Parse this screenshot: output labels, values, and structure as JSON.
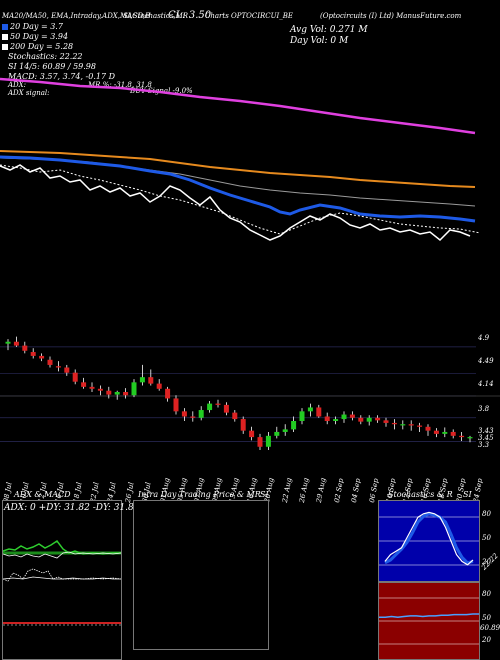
{
  "header": {
    "topline": "MA20/MA50, EMA,Intraday,ADX,MACD,B",
    "stoch_label": "SI,Stochastics,MR",
    "cl": "CL: 3.50",
    "symbol": "Charts OPTOCIRCUI_BE",
    "source": "(Optocircuits (I) Ltd) ManusFuture.com",
    "avg_vol": "Avg Vol: 0.271 M",
    "day_vol": "Day Vol: 0   M"
  },
  "legend": {
    "ma20": "20 Day = 3.7",
    "ma50": "50 Day = 3.94",
    "ma200": "200 Day = 5.28",
    "stochastics": "Stochastics: 22.22",
    "si": "SI 14/5: 60.89 / 59.98",
    "macd": "MACD: 3.57, 3.74, -0.17 D",
    "adx_label": "ADX:",
    "adx_signal": "ADX signal:",
    "mr_pct": "MR %: -31.8, 31.8",
    "buy_signal": "BUY Signal -9.0%",
    "colors": {
      "ma20": "#1e5ae6",
      "ma50": "#ffffff",
      "ma200": "#ffffff"
    }
  },
  "price_axis": [
    "4.9",
    "4.49",
    "4.14",
    "3.8",
    "3.43",
    "3.45",
    "3.3"
  ],
  "date_labels": [
    "08 Jul",
    "10 Jul",
    "12 Jul",
    "16 Jul",
    "18 Jul",
    "22 Jul",
    "24 Jul",
    "26 Jul",
    "30 Jul",
    "01 Aug",
    "05 Aug",
    "07 Aug",
    "09 Aug",
    "13 Aug",
    "16 Aug",
    "20 Aug",
    "22 Aug",
    "26 Aug",
    "29 Aug",
    "02 Sep",
    "04 Sep",
    "06 Sep",
    "10 Sep",
    "12 Sep",
    "16 Sep",
    "18 Sep",
    "20 Sep",
    "24 Sep"
  ],
  "panels": {
    "adx_title": "ADX  & MACD",
    "adx_values": "ADX: 0  +DY: 31.82  -DY: 31.82",
    "intraday_title": "Intra  Day Trading Price  & MR",
    "si_title": "SI",
    "stoch_title": "Stochastics & R",
    "stoch_si_title": "SI",
    "stoch_axis": [
      "80",
      "50",
      "20",
      "22.22"
    ],
    "si_axis": [
      "80",
      "50",
      "20",
      "60.89"
    ]
  },
  "chart_data": [
    {
      "type": "line",
      "title": "Moving averages",
      "series": [
        {
          "name": "MA20",
          "color": "#1e5ae6",
          "values": [
            4.05,
            4.04,
            4.02,
            4.0,
            3.97,
            3.95,
            3.92,
            3.9,
            3.88,
            3.86,
            3.84,
            3.82,
            3.8,
            3.78,
            3.76,
            3.74,
            3.72,
            3.7
          ]
        },
        {
          "name": "MA50",
          "color": "#ffffff",
          "values": [
            4.45,
            4.44,
            4.42,
            4.4,
            4.37,
            4.34,
            4.31,
            4.28,
            4.25,
            4.21,
            4.17,
            4.13,
            4.09,
            4.05,
            4.01,
            3.98,
            3.96,
            3.94
          ]
        },
        {
          "name": "MA200",
          "color": "#ffffff",
          "values": [
            6.4,
            6.35,
            6.3,
            6.25,
            6.2,
            6.15,
            6.1,
            6.05,
            6.0,
            5.95,
            5.9,
            5.84,
            5.78,
            5.72,
            5.64,
            5.54,
            5.42,
            5.28
          ]
        }
      ]
    },
    {
      "type": "candlestick",
      "x": [
        "08 Jul",
        "09 Jul",
        "10 Jul",
        "11 Jul",
        "12 Jul",
        "15 Jul",
        "16 Jul",
        "17 Jul",
        "18 Jul",
        "19 Jul",
        "22 Jul",
        "23 Jul",
        "24 Jul",
        "25 Jul",
        "26 Jul",
        "29 Jul",
        "30 Jul",
        "31 Jul",
        "01 Aug",
        "02 Aug",
        "05 Aug",
        "06 Aug",
        "07 Aug",
        "08 Aug",
        "09 Aug",
        "12 Aug",
        "13 Aug",
        "14 Aug",
        "16 Aug",
        "19 Aug",
        "20 Aug",
        "21 Aug",
        "22 Aug",
        "23 Aug",
        "26 Aug",
        "27 Aug",
        "28 Aug",
        "29 Aug",
        "30 Aug",
        "02 Sep",
        "03 Sep",
        "04 Sep",
        "05 Sep",
        "06 Sep",
        "09 Sep",
        "10 Sep",
        "11 Sep",
        "12 Sep",
        "13 Sep",
        "16 Sep",
        "17 Sep",
        "18 Sep",
        "19 Sep",
        "20 Sep",
        "23 Sep",
        "24 Sep"
      ],
      "open": [
        4.95,
        4.98,
        4.92,
        4.82,
        4.76,
        4.7,
        4.6,
        4.58,
        4.5,
        4.35,
        4.28,
        4.25,
        4.22,
        4.16,
        4.2,
        4.15,
        4.35,
        4.43,
        4.33,
        4.25,
        4.1,
        3.9,
        3.82,
        3.8,
        3.92,
        4.02,
        4.0,
        3.88,
        3.78,
        3.6,
        3.5,
        3.35,
        3.52,
        3.58,
        3.62,
        3.75,
        3.9,
        3.96,
        3.82,
        3.75,
        3.78,
        3.85,
        3.8,
        3.74,
        3.8,
        3.76,
        3.72,
        3.7,
        3.7,
        3.68,
        3.66,
        3.6,
        3.55,
        3.58,
        3.52,
        3.5
      ],
      "high": [
        5.02,
        5.06,
        4.98,
        4.88,
        4.8,
        4.75,
        4.68,
        4.62,
        4.55,
        4.42,
        4.35,
        4.3,
        4.28,
        4.22,
        4.26,
        4.4,
        4.62,
        4.55,
        4.4,
        4.28,
        4.15,
        3.95,
        3.9,
        3.98,
        4.06,
        4.08,
        4.04,
        3.92,
        3.82,
        3.66,
        3.55,
        3.58,
        3.66,
        3.7,
        3.82,
        3.95,
        4.02,
        4.0,
        3.88,
        3.82,
        3.9,
        3.9,
        3.84,
        3.84,
        3.84,
        3.8,
        3.78,
        3.76,
        3.76,
        3.72,
        3.7,
        3.64,
        3.65,
        3.62,
        3.58,
        3.52
      ],
      "low": [
        4.85,
        4.9,
        4.8,
        4.72,
        4.68,
        4.58,
        4.52,
        4.45,
        4.32,
        4.25,
        4.2,
        4.15,
        4.1,
        4.08,
        4.1,
        4.12,
        4.3,
        4.3,
        4.22,
        4.05,
        3.85,
        3.75,
        3.74,
        3.76,
        3.88,
        3.96,
        3.84,
        3.74,
        3.55,
        3.45,
        3.3,
        3.3,
        3.48,
        3.52,
        3.58,
        3.7,
        3.82,
        3.8,
        3.7,
        3.7,
        3.72,
        3.76,
        3.7,
        3.68,
        3.72,
        3.66,
        3.62,
        3.62,
        3.6,
        3.58,
        3.52,
        3.5,
        3.5,
        3.48,
        3.44,
        3.42
      ],
      "close": [
        4.98,
        4.92,
        4.84,
        4.76,
        4.72,
        4.62,
        4.58,
        4.5,
        4.36,
        4.28,
        4.25,
        4.22,
        4.16,
        4.2,
        4.15,
        4.35,
        4.43,
        4.33,
        4.25,
        4.1,
        3.9,
        3.82,
        3.8,
        3.92,
        4.02,
        4.0,
        3.88,
        3.78,
        3.6,
        3.5,
        3.35,
        3.52,
        3.58,
        3.62,
        3.75,
        3.9,
        3.96,
        3.82,
        3.75,
        3.78,
        3.85,
        3.8,
        3.74,
        3.8,
        3.76,
        3.72,
        3.7,
        3.7,
        3.68,
        3.66,
        3.6,
        3.55,
        3.58,
        3.52,
        3.5,
        3.5
      ],
      "ylim": [
        3.3,
        5.1
      ]
    },
    {
      "type": "line",
      "title": "Stochastics & RSI",
      "series": [
        {
          "name": "Stochastics",
          "color": "#ffffff",
          "values": [
            20,
            30,
            35,
            40,
            55,
            70,
            85,
            90,
            92,
            90,
            85,
            70,
            50,
            30,
            20,
            15,
            22
          ]
        },
        {
          "name": "%D",
          "color": "#1e5ae6",
          "values": [
            18,
            22,
            30,
            38,
            48,
            62,
            78,
            86,
            90,
            88,
            85,
            78,
            60,
            40,
            26,
            18,
            20
          ]
        },
        {
          "name": "SI",
          "color": "#4aa0ff",
          "values": [
            56,
            56,
            57,
            56,
            57,
            58,
            58,
            57,
            58,
            58,
            59,
            59,
            60,
            60,
            60,
            61,
            61
          ]
        }
      ],
      "ylim": [
        0,
        100
      ]
    }
  ]
}
